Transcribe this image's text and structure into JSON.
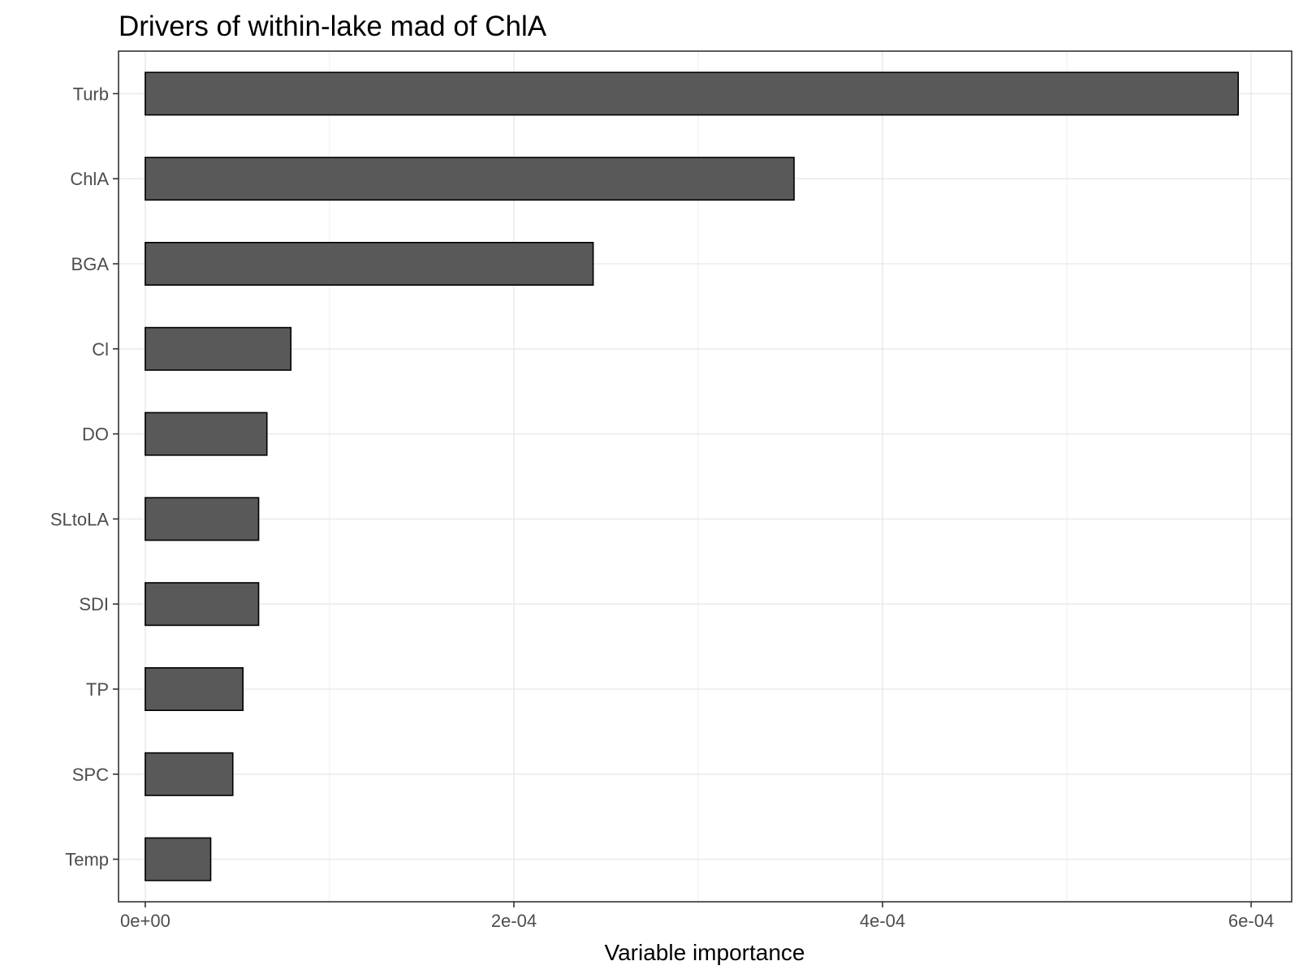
{
  "chart_data": {
    "type": "bar",
    "orientation": "horizontal",
    "title": "Drivers of within-lake mad of ChlA",
    "xlabel": "Variable importance",
    "ylabel": "",
    "categories": [
      "Turb",
      "ChlA",
      "BGA",
      "Cl",
      "DO",
      "SLtoLA",
      "SDI",
      "TP",
      "SPC",
      "Temp"
    ],
    "values": [
      0.000593,
      0.000352,
      0.000243,
      7.9e-05,
      6.6e-05,
      6.15e-05,
      6.15e-05,
      5.3e-05,
      4.75e-05,
      3.55e-05
    ],
    "xlim": [
      -1.45e-05,
      0.000622
    ],
    "x_ticks": [
      0,
      0.0002,
      0.0004,
      0.0006
    ],
    "x_tick_labels": [
      "0e+00",
      "2e-04",
      "4e-04",
      "6e-04"
    ],
    "grid": true,
    "legend": "none",
    "colors": {
      "bar_fill": "#595959",
      "bar_outline": "#000000",
      "grid": "#ebebeb"
    }
  }
}
